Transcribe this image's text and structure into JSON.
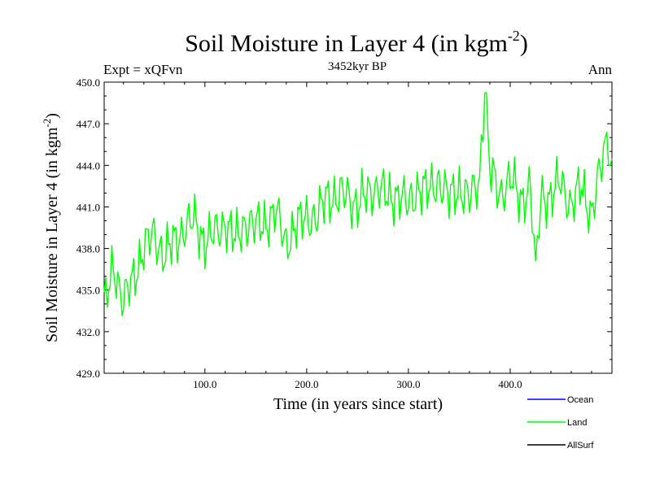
{
  "chart_data": {
    "type": "line",
    "title": "Soil Moisture in Layer 4 (in kgm",
    "title_superscript": "-2",
    "title_suffix": ")",
    "subtitle_left": "Expt = xQFvn",
    "subtitle_center": "3452kyr BP",
    "subtitle_right": "Ann",
    "xlabel": "Time (in years since start)",
    "ylabel": "Soil Moisture in Layer 4 (in kgm",
    "ylabel_superscript": "-2",
    "ylabel_suffix": ")",
    "xlim": [
      1,
      500
    ],
    "ylim": [
      429.0,
      450.0
    ],
    "x_ticks": [
      100,
      200,
      300,
      400
    ],
    "x_tick_labels": [
      "100.0",
      "200.0",
      "300.0",
      "400.0"
    ],
    "y_ticks": [
      429,
      432,
      435,
      438,
      441,
      444,
      447,
      450
    ],
    "y_tick_labels": [
      "429.0",
      "432.0",
      "435.0",
      "438.0",
      "441.0",
      "444.0",
      "447.0",
      "450.0"
    ],
    "legend": [
      {
        "label": "Ocean",
        "color": "#0000ff"
      },
      {
        "label": "Land",
        "color": "#00ff00"
      },
      {
        "label": "AllSurf",
        "color": "#000000"
      }
    ],
    "series": [
      {
        "name": "Land",
        "color": "#00ff00",
        "x": [
          1,
          10,
          20,
          30,
          40,
          50,
          60,
          70,
          80,
          90,
          100,
          110,
          120,
          130,
          140,
          150,
          160,
          170,
          180,
          190,
          200,
          210,
          220,
          230,
          240,
          250,
          260,
          270,
          280,
          290,
          300,
          310,
          320,
          330,
          340,
          350,
          360,
          370,
          375,
          380,
          390,
          400,
          410,
          420,
          425,
          430,
          440,
          450,
          460,
          470,
          480,
          490,
          495,
          500
        ],
        "values": [
          434.0,
          437.0,
          434.0,
          436.0,
          438.0,
          439.0,
          437.5,
          438.5,
          439.5,
          440.0,
          438.5,
          439.0,
          440.0,
          438.5,
          440.0,
          439.5,
          440.0,
          440.5,
          438.5,
          439.5,
          440.5,
          440.0,
          442.0,
          441.5,
          442.0,
          441.0,
          442.0,
          442.5,
          441.5,
          442.0,
          441.0,
          442.5,
          442.0,
          443.0,
          441.5,
          442.5,
          441.5,
          443.0,
          449.5,
          443.5,
          442.0,
          443.0,
          441.5,
          442.5,
          437.0,
          442.0,
          441.5,
          443.0,
          441.0,
          442.5,
          440.5,
          444.0,
          445.5,
          444.5
        ]
      }
    ]
  }
}
